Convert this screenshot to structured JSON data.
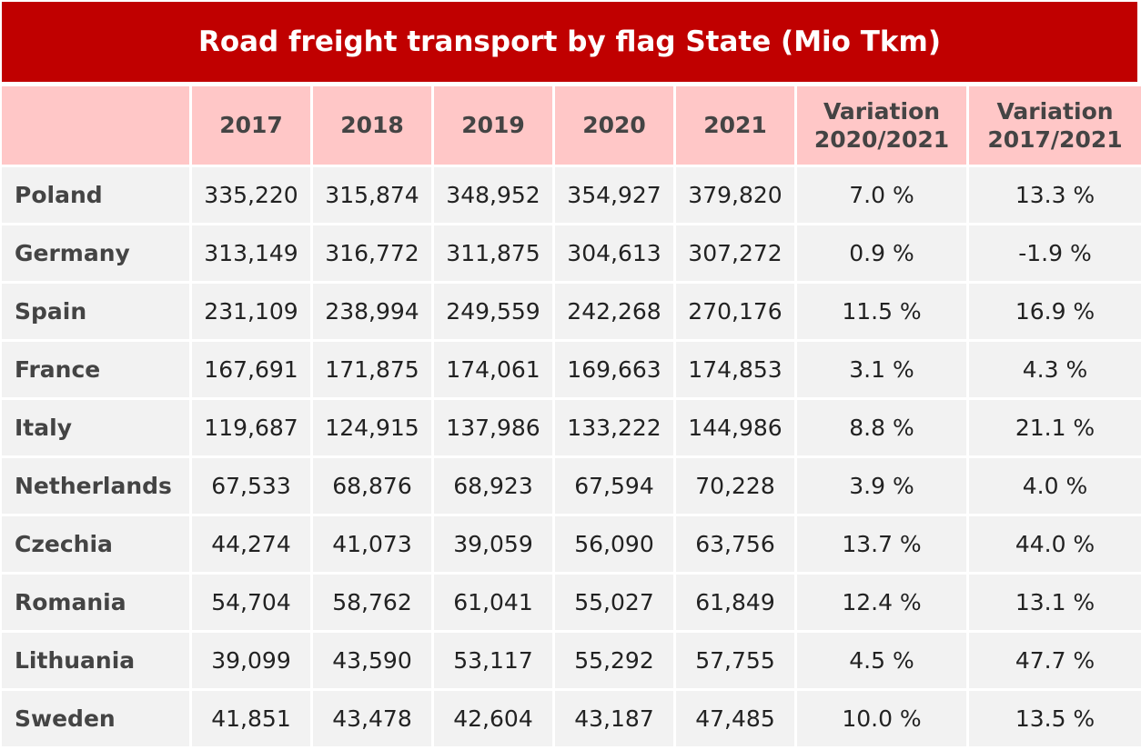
{
  "header": {
    "title": "Road freight transport by flag State (Mio Tkm)"
  },
  "table": {
    "columns": [
      "2017",
      "2018",
      "2019",
      "2020",
      "2021",
      "Variation 2020/2021",
      "Variation 2017/2021"
    ],
    "rows": [
      [
        "Poland",
        "335,220",
        "315,874",
        "348,952",
        "354,927",
        "379,820",
        "7.0 %",
        "13.3 %"
      ],
      [
        "Germany",
        "313,149",
        "316,772",
        "311,875",
        "304,613",
        "307,272",
        "0.9 %",
        "-1.9 %"
      ],
      [
        "Spain",
        "231,109",
        "238,994",
        "249,559",
        "242,268",
        "270,176",
        "11.5 %",
        "16.9 %"
      ],
      [
        "France",
        "167,691",
        "171,875",
        "174,061",
        "169,663",
        "174,853",
        "3.1 %",
        "4.3 %"
      ],
      [
        "Italy",
        "119,687",
        "124,915",
        "137,986",
        "133,222",
        "144,986",
        "8.8 %",
        "21.1 %"
      ],
      [
        "Netherlands",
        "67,533",
        "68,876",
        "68,923",
        "67,594",
        "70,228",
        "3.9 %",
        "4.0 %"
      ],
      [
        "Czechia",
        "44,274",
        "41,073",
        "39,059",
        "56,090",
        "63,756",
        "13.7 %",
        "44.0 %"
      ],
      [
        "Romania",
        "54,704",
        "58,762",
        "61,041",
        "55,027",
        "61,849",
        "12.4 %",
        "13.1 %"
      ],
      [
        "Lithuania",
        "39,099",
        "43,590",
        "53,117",
        "55,292",
        "57,755",
        "4.5 %",
        "47.7 %"
      ],
      [
        "Sweden",
        "41,851",
        "43,478",
        "42,604",
        "43,187",
        "47,485",
        "10.0 %",
        "13.5 %"
      ]
    ]
  }
}
